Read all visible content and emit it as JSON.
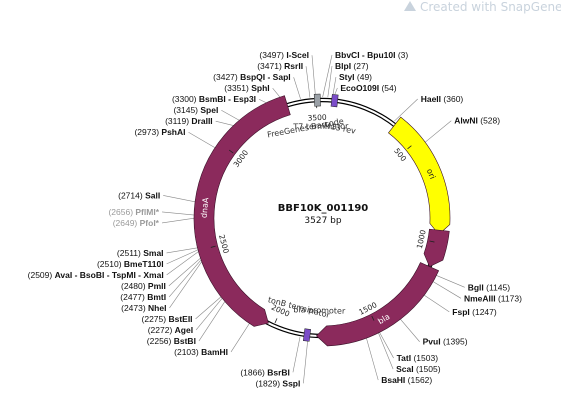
{
  "map": {
    "name": "BBF10K_001190",
    "length_label": "3527 bp",
    "total_bp": 3527,
    "watermark": "Created with SnapGene®"
  },
  "ticks": [
    {
      "bp": 500,
      "label": "500"
    },
    {
      "bp": 1000,
      "label": "1000"
    },
    {
      "bp": 1500,
      "label": "1500"
    },
    {
      "bp": 2000,
      "label": "2000"
    },
    {
      "bp": 2500,
      "label": "2500"
    },
    {
      "bp": 3000,
      "label": "3000"
    },
    {
      "bp": 3500,
      "label": "3500"
    }
  ],
  "features": [
    {
      "name": "ori",
      "start": 372,
      "end": 960,
      "color": "#ffff00",
      "dir": 1,
      "label_color": "dark"
    },
    {
      "name": "bla",
      "start": 1120,
      "end": 1790,
      "color": "#8b2a5c",
      "dir": 1,
      "label_color": "light"
    },
    {
      "name": "dnaA",
      "start": 2028,
      "end": 3360,
      "color": "#8b2a5c",
      "dir": -1,
      "label_color": "light"
    },
    {
      "name": "",
      "start": 940,
      "end": 1120,
      "color": "#8b2a5c",
      "dir": 1,
      "label_color": "light"
    }
  ],
  "inner_labels": [
    {
      "text": "FreeGenes Barcode",
      "bp": 3425
    },
    {
      "text": "M13 rev",
      "bp": 110
    },
    {
      "text": "T7 terminator",
      "bp": 3520
    },
    {
      "text": "tonB terminator",
      "bp": 1905
    },
    {
      "text": "bla promoter",
      "bp": 1780
    }
  ],
  "sites": [
    {
      "name": "I-SceI",
      "pos": "(3497)",
      "bp": 3497,
      "side": "left"
    },
    {
      "name": "RsrII",
      "pos": "(3471)",
      "bp": 3471,
      "side": "left"
    },
    {
      "name": "BspQI - SapI",
      "pos": "(3427)",
      "bp": 3427,
      "side": "left"
    },
    {
      "name": "SphI",
      "pos": "(3351)",
      "bp": 3351,
      "side": "left"
    },
    {
      "name": "BsmBI - Esp3I",
      "pos": "(3300)",
      "bp": 3300,
      "side": "left"
    },
    {
      "name": "SpeI",
      "pos": "(3145)",
      "bp": 3145,
      "side": "left"
    },
    {
      "name": "DraIII",
      "pos": "(3119)",
      "bp": 3119,
      "side": "left"
    },
    {
      "name": "PshAI",
      "pos": "(2973)",
      "bp": 2973,
      "side": "left"
    },
    {
      "name": "SalI",
      "pos": "(2714)",
      "bp": 2714,
      "side": "left"
    },
    {
      "name": "PflMI*",
      "pos": "(2656)",
      "bp": 2656,
      "side": "left",
      "grey": true
    },
    {
      "name": "PfoI*",
      "pos": "(2649)",
      "bp": 2649,
      "side": "left",
      "grey": true
    },
    {
      "name": "SmaI",
      "pos": "(2511)",
      "bp": 2511,
      "side": "left"
    },
    {
      "name": "BmeT110I",
      "pos": "(2510)",
      "bp": 2510,
      "side": "left"
    },
    {
      "name": "AvaI - BsoBI - TspMI - XmaI",
      "pos": "(2509)",
      "bp": 2509,
      "side": "left"
    },
    {
      "name": "PmlI",
      "pos": "(2480)",
      "bp": 2480,
      "side": "left"
    },
    {
      "name": "BmtI",
      "pos": "(2477)",
      "bp": 2477,
      "side": "left"
    },
    {
      "name": "NheI",
      "pos": "(2473)",
      "bp": 2473,
      "side": "left"
    },
    {
      "name": "BstEII",
      "pos": "(2275)",
      "bp": 2275,
      "side": "left"
    },
    {
      "name": "AgeI",
      "pos": "(2272)",
      "bp": 2272,
      "side": "left"
    },
    {
      "name": "BstBI",
      "pos": "(2256)",
      "bp": 2256,
      "side": "left"
    },
    {
      "name": "BamHI",
      "pos": "(2103)",
      "bp": 2103,
      "side": "left"
    },
    {
      "name": "BsrBI",
      "pos": "(1866)",
      "bp": 1866,
      "side": "left"
    },
    {
      "name": "SspI",
      "pos": "(1829)",
      "bp": 1829,
      "side": "left"
    },
    {
      "name": "BbvCI - Bpu10I",
      "pos": "(3)",
      "bp": 3,
      "side": "right"
    },
    {
      "name": "BlpI",
      "pos": "(27)",
      "bp": 27,
      "side": "right"
    },
    {
      "name": "StyI",
      "pos": "(49)",
      "bp": 49,
      "side": "right"
    },
    {
      "name": "EcoO109I",
      "pos": "(54)",
      "bp": 54,
      "side": "right"
    },
    {
      "name": "HaeII",
      "pos": "(360)",
      "bp": 360,
      "side": "right"
    },
    {
      "name": "AlwNI",
      "pos": "(528)",
      "bp": 528,
      "side": "right"
    },
    {
      "name": "BglI",
      "pos": "(1145)",
      "bp": 1145,
      "side": "right"
    },
    {
      "name": "NmeAIII",
      "pos": "(1173)",
      "bp": 1173,
      "side": "right"
    },
    {
      "name": "FspI",
      "pos": "(1247)",
      "bp": 1247,
      "side": "right"
    },
    {
      "name": "PvuI",
      "pos": "(1395)",
      "bp": 1395,
      "side": "right"
    },
    {
      "name": "TatI",
      "pos": "(1503)",
      "bp": 1503,
      "side": "right"
    },
    {
      "name": "ScaI",
      "pos": "(1505)",
      "bp": 1505,
      "side": "right"
    },
    {
      "name": "BsaHI",
      "pos": "(1562)",
      "bp": 1562,
      "side": "right"
    }
  ]
}
